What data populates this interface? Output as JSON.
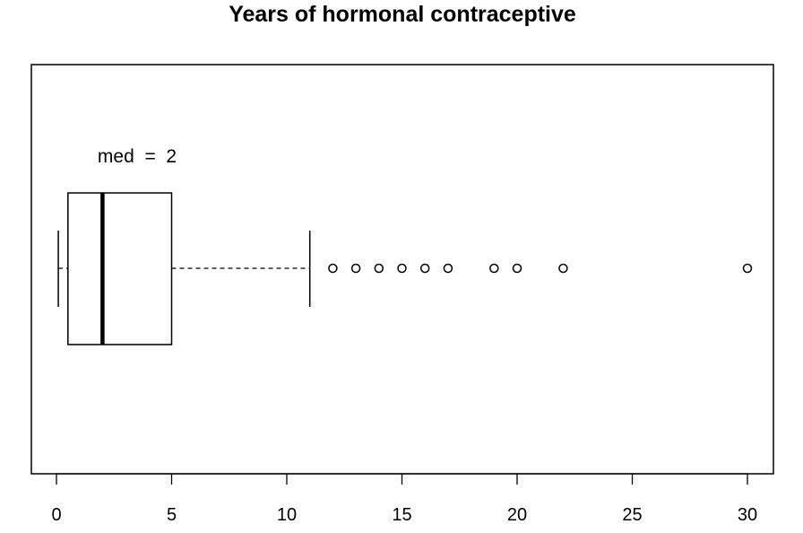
{
  "chart_data": {
    "type": "boxplot",
    "orientation": "horizontal",
    "title": "Years of hormonal contraceptive",
    "xlabel": "",
    "ylabel": "",
    "xlim": [
      -1,
      31
    ],
    "x_ticks": [
      0,
      5,
      10,
      15,
      20,
      25,
      30
    ],
    "x_tick_labels": [
      "0",
      "5",
      "10",
      "15",
      "20",
      "25",
      "30"
    ],
    "box": {
      "whisker_low": 0.08,
      "q1": 0.5,
      "median": 2,
      "q3": 5,
      "whisker_high": 11
    },
    "outliers": [
      12,
      13,
      14,
      15,
      16,
      17,
      19,
      20,
      22,
      30
    ],
    "annotation": "med  =  2",
    "grid": false
  }
}
